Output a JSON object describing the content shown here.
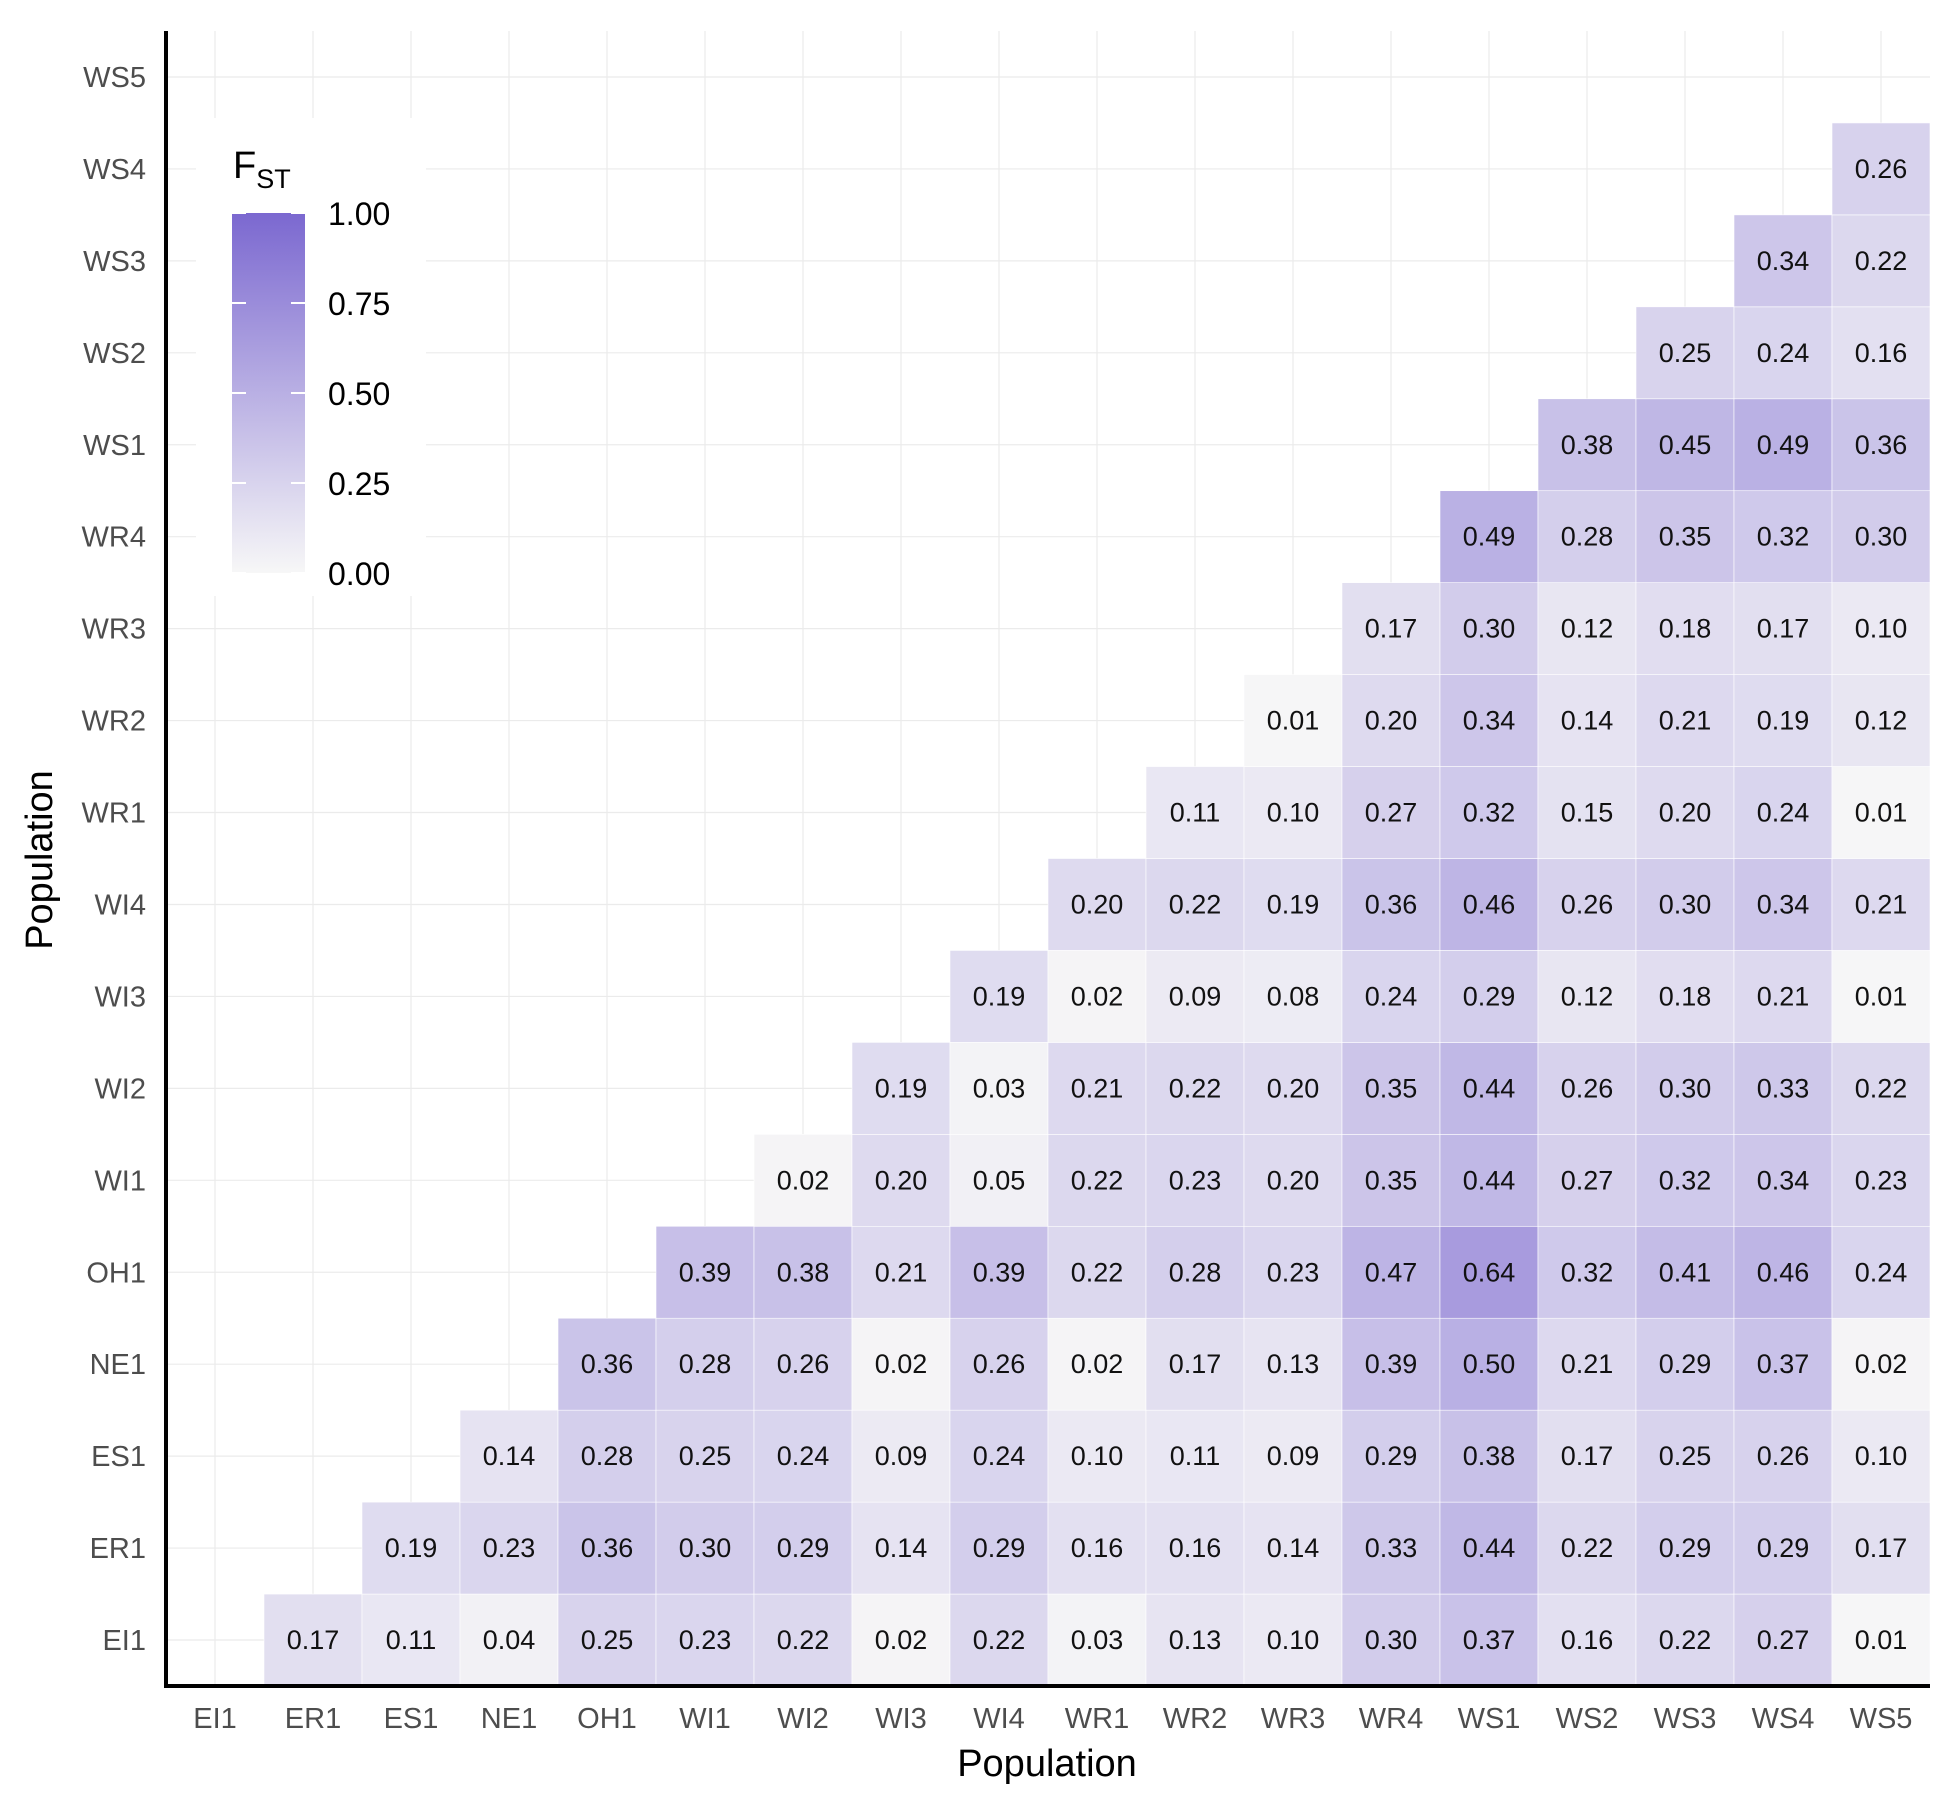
{
  "chart_data": {
    "type": "heatmap",
    "title": "",
    "xlabel": "Population",
    "ylabel": "Population",
    "x_categories": [
      "EI1",
      "ER1",
      "ES1",
      "NE1",
      "OH1",
      "WI1",
      "WI2",
      "WI3",
      "WI4",
      "WR1",
      "WR2",
      "WR3",
      "WR4",
      "WS1",
      "WS2",
      "WS3",
      "WS4",
      "WS5"
    ],
    "y_categories": [
      "EI1",
      "ER1",
      "ES1",
      "NE1",
      "OH1",
      "WI1",
      "WI2",
      "WI3",
      "WI4",
      "WR1",
      "WR2",
      "WR3",
      "WR4",
      "WS1",
      "WS2",
      "WS3",
      "WS4",
      "WS5"
    ],
    "value_label_format": "2 decimals",
    "rows": [
      {
        "y": "EI1",
        "values": [
          null,
          0.17,
          0.11,
          0.04,
          0.25,
          0.23,
          0.22,
          0.02,
          0.22,
          0.03,
          0.13,
          0.1,
          0.3,
          0.37,
          0.16,
          0.22,
          0.27,
          0.01
        ]
      },
      {
        "y": "ER1",
        "values": [
          null,
          null,
          0.19,
          0.23,
          0.36,
          0.3,
          0.29,
          0.14,
          0.29,
          0.16,
          0.16,
          0.14,
          0.33,
          0.44,
          0.22,
          0.29,
          0.29,
          0.17
        ]
      },
      {
        "y": "ES1",
        "values": [
          null,
          null,
          null,
          0.14,
          0.28,
          0.25,
          0.24,
          0.09,
          0.24,
          0.1,
          0.11,
          0.09,
          0.29,
          0.38,
          0.17,
          0.25,
          0.26,
          0.1
        ]
      },
      {
        "y": "NE1",
        "values": [
          null,
          null,
          null,
          null,
          0.36,
          0.28,
          0.26,
          0.02,
          0.26,
          0.02,
          0.17,
          0.13,
          0.39,
          0.5,
          0.21,
          0.29,
          0.37,
          0.02
        ]
      },
      {
        "y": "OH1",
        "values": [
          null,
          null,
          null,
          null,
          null,
          0.39,
          0.38,
          0.21,
          0.39,
          0.22,
          0.28,
          0.23,
          0.47,
          0.64,
          0.32,
          0.41,
          0.46,
          0.24
        ]
      },
      {
        "y": "WI1",
        "values": [
          null,
          null,
          null,
          null,
          null,
          null,
          0.02,
          0.2,
          0.05,
          0.22,
          0.23,
          0.2,
          0.35,
          0.44,
          0.27,
          0.32,
          0.34,
          0.23
        ]
      },
      {
        "y": "WI2",
        "values": [
          null,
          null,
          null,
          null,
          null,
          null,
          null,
          0.19,
          0.03,
          0.21,
          0.22,
          0.2,
          0.35,
          0.44,
          0.26,
          0.3,
          0.33,
          0.22
        ]
      },
      {
        "y": "WI3",
        "values": [
          null,
          null,
          null,
          null,
          null,
          null,
          null,
          null,
          0.19,
          0.02,
          0.09,
          0.08,
          0.24,
          0.29,
          0.12,
          0.18,
          0.21,
          0.01
        ]
      },
      {
        "y": "WI4",
        "values": [
          null,
          null,
          null,
          null,
          null,
          null,
          null,
          null,
          null,
          0.2,
          0.22,
          0.19,
          0.36,
          0.46,
          0.26,
          0.3,
          0.34,
          0.21
        ]
      },
      {
        "y": "WR1",
        "values": [
          null,
          null,
          null,
          null,
          null,
          null,
          null,
          null,
          null,
          null,
          0.11,
          0.1,
          0.27,
          0.32,
          0.15,
          0.2,
          0.24,
          0.01
        ]
      },
      {
        "y": "WR2",
        "values": [
          null,
          null,
          null,
          null,
          null,
          null,
          null,
          null,
          null,
          null,
          null,
          0.01,
          0.2,
          0.34,
          0.14,
          0.21,
          0.19,
          0.12
        ]
      },
      {
        "y": "WR3",
        "values": [
          null,
          null,
          null,
          null,
          null,
          null,
          null,
          null,
          null,
          null,
          null,
          null,
          0.17,
          0.3,
          0.12,
          0.18,
          0.17,
          0.1
        ]
      },
      {
        "y": "WR4",
        "values": [
          null,
          null,
          null,
          null,
          null,
          null,
          null,
          null,
          null,
          null,
          null,
          null,
          null,
          0.49,
          0.28,
          0.35,
          0.32,
          0.3
        ]
      },
      {
        "y": "WS1",
        "values": [
          null,
          null,
          null,
          null,
          null,
          null,
          null,
          null,
          null,
          null,
          null,
          null,
          null,
          null,
          0.38,
          0.45,
          0.49,
          0.36
        ]
      },
      {
        "y": "WS2",
        "values": [
          null,
          null,
          null,
          null,
          null,
          null,
          null,
          null,
          null,
          null,
          null,
          null,
          null,
          null,
          null,
          0.25,
          0.24,
          0.16
        ]
      },
      {
        "y": "WS3",
        "values": [
          null,
          null,
          null,
          null,
          null,
          null,
          null,
          null,
          null,
          null,
          null,
          null,
          null,
          null,
          null,
          null,
          0.34,
          0.22
        ]
      },
      {
        "y": "WS4",
        "values": [
          null,
          null,
          null,
          null,
          null,
          null,
          null,
          null,
          null,
          null,
          null,
          null,
          null,
          null,
          null,
          null,
          null,
          0.26
        ]
      },
      {
        "y": "WS5",
        "values": [
          null,
          null,
          null,
          null,
          null,
          null,
          null,
          null,
          null,
          null,
          null,
          null,
          null,
          null,
          null,
          null,
          null,
          null
        ]
      }
    ],
    "legend": {
      "title_main": "F",
      "title_subscript": "ST",
      "placement": "top-left",
      "range": [
        0,
        1
      ],
      "ticks": [
        "0.00",
        "0.25",
        "0.50",
        "0.75",
        "1.00"
      ],
      "color_low": "#f7f7f7",
      "color_high": "#7b68d0"
    },
    "grid": true,
    "cell_text_color": "#111111",
    "tick_label_color": "#4d4d4d"
  }
}
